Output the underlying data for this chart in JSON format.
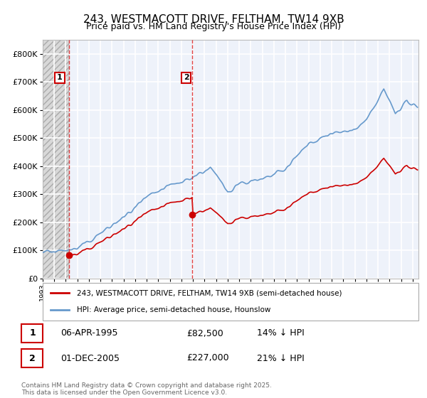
{
  "title": "243, WESTMACOTT DRIVE, FELTHAM, TW14 9XB",
  "subtitle": "Price paid vs. HM Land Registry's House Price Index (HPI)",
  "ylim": [
    0,
    850000
  ],
  "yticks": [
    0,
    100000,
    200000,
    300000,
    400000,
    500000,
    600000,
    700000,
    800000
  ],
  "ytick_labels": [
    "£0",
    "£100K",
    "£200K",
    "£300K",
    "£400K",
    "£500K",
    "£600K",
    "£700K",
    "£800K"
  ],
  "xlim_start": 1993.0,
  "xlim_end": 2025.5,
  "background_color": "#eef2fa",
  "hatch_region_end": 1995.27,
  "grid_color": "#ffffff",
  "purchase1_year": 1995.27,
  "purchase1_price": 82500,
  "purchase2_year": 2005.92,
  "purchase2_price": 227000,
  "legend1_label": "243, WESTMACOTT DRIVE, FELTHAM, TW14 9XB (semi-detached house)",
  "legend2_label": "HPI: Average price, semi-detached house, Hounslow",
  "legend1_color": "#cc0000",
  "legend2_color": "#6699cc",
  "footer": "Contains HM Land Registry data © Crown copyright and database right 2025.\nThis data is licensed under the Open Government Licence v3.0.",
  "annotation1_date": "06-APR-1995",
  "annotation1_price": "£82,500",
  "annotation1_hpi": "14% ↓ HPI",
  "annotation2_date": "01-DEC-2005",
  "annotation2_price": "£227,000",
  "annotation2_hpi": "21% ↓ HPI",
  "fig_width": 6.0,
  "fig_height": 5.6,
  "dpi": 100
}
